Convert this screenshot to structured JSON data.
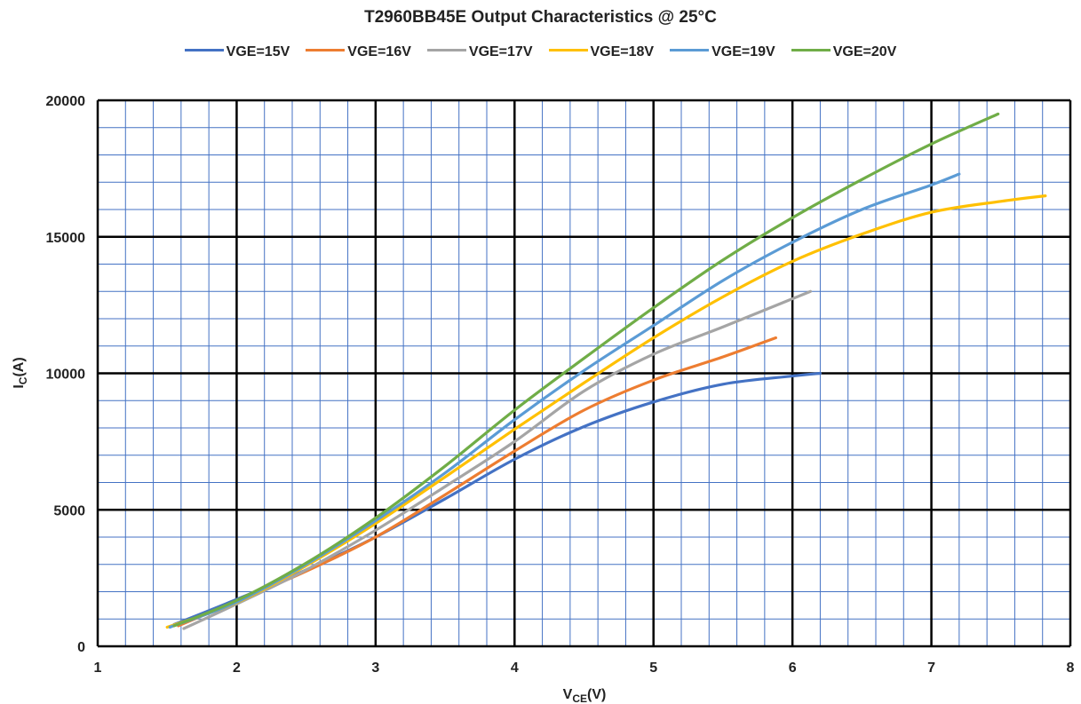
{
  "chart_data": {
    "type": "line",
    "title": "T2960BB45E Output Characteristics @ 25°C",
    "xlabel": {
      "main": "V",
      "sub": "CE",
      "tail": "(V)"
    },
    "ylabel": {
      "main": "I",
      "sub": "C",
      "tail": "(A)"
    },
    "xlim": [
      1,
      8
    ],
    "ylim": [
      0,
      20000
    ],
    "x_ticks": [
      1,
      2,
      3,
      4,
      5,
      6,
      7,
      8
    ],
    "y_ticks": [
      0,
      5000,
      10000,
      15000,
      20000
    ],
    "major_grid": true,
    "minor_grid": true,
    "legend_position": "top",
    "series": [
      {
        "name": "VGE=15V",
        "color": "#4472C4",
        "points": [
          [
            1.55,
            800
          ],
          [
            2,
            1720
          ],
          [
            2.5,
            2800
          ],
          [
            3,
            4000
          ],
          [
            3.5,
            5400
          ],
          [
            4,
            6850
          ],
          [
            4.5,
            8050
          ],
          [
            5,
            8950
          ],
          [
            5.5,
            9600
          ],
          [
            6,
            9900
          ],
          [
            6.2,
            10000
          ]
        ]
      },
      {
        "name": "VGE=16V",
        "color": "#ED7D31",
        "points": [
          [
            1.58,
            750
          ],
          [
            2,
            1650
          ],
          [
            2.5,
            2750
          ],
          [
            3,
            4000
          ],
          [
            3.5,
            5550
          ],
          [
            4,
            7150
          ],
          [
            4.5,
            8650
          ],
          [
            5,
            9750
          ],
          [
            5.5,
            10600
          ],
          [
            5.88,
            11300
          ]
        ]
      },
      {
        "name": "VGE=17V",
        "color": "#A5A5A5",
        "points": [
          [
            1.62,
            650
          ],
          [
            2,
            1550
          ],
          [
            2.5,
            2800
          ],
          [
            3,
            4250
          ],
          [
            3.5,
            5850
          ],
          [
            4,
            7500
          ],
          [
            4.5,
            9350
          ],
          [
            5,
            10700
          ],
          [
            5.5,
            11700
          ],
          [
            6.13,
            13000
          ]
        ]
      },
      {
        "name": "VGE=18V",
        "color": "#FFC000",
        "points": [
          [
            1.5,
            700
          ],
          [
            2,
            1600
          ],
          [
            2.5,
            2950
          ],
          [
            3,
            4500
          ],
          [
            3.5,
            6200
          ],
          [
            4,
            7950
          ],
          [
            4.5,
            9650
          ],
          [
            5,
            11300
          ],
          [
            5.5,
            12800
          ],
          [
            6,
            14100
          ],
          [
            6.5,
            15100
          ],
          [
            7,
            15900
          ],
          [
            7.5,
            16300
          ],
          [
            7.82,
            16500
          ]
        ]
      },
      {
        "name": "VGE=19V",
        "color": "#5B9BD5",
        "points": [
          [
            1.52,
            700
          ],
          [
            2,
            1620
          ],
          [
            2.5,
            3000
          ],
          [
            3,
            4600
          ],
          [
            3.5,
            6350
          ],
          [
            4,
            8300
          ],
          [
            4.5,
            10100
          ],
          [
            5,
            11750
          ],
          [
            5.5,
            13400
          ],
          [
            6,
            14800
          ],
          [
            6.5,
            16000
          ],
          [
            7,
            16900
          ],
          [
            7.2,
            17300
          ]
        ]
      },
      {
        "name": "VGE=20V",
        "color": "#70AD47",
        "points": [
          [
            1.55,
            750
          ],
          [
            2,
            1680
          ],
          [
            2.5,
            3050
          ],
          [
            3,
            4700
          ],
          [
            3.5,
            6600
          ],
          [
            4,
            8650
          ],
          [
            4.5,
            10550
          ],
          [
            5,
            12400
          ],
          [
            5.5,
            14150
          ],
          [
            6,
            15700
          ],
          [
            6.5,
            17100
          ],
          [
            7,
            18400
          ],
          [
            7.48,
            19500
          ]
        ]
      }
    ]
  }
}
